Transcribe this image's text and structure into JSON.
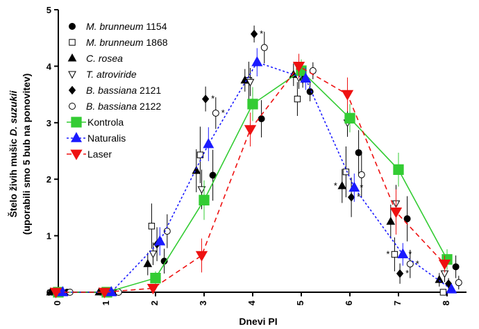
{
  "chart_data": {
    "type": "line",
    "xlabel": "Dnevi PI",
    "ylabel": "Štelo živih mušic D. suzukii",
    "ylabel_parts": {
      "line1_prefix": "Štelo živih mušic ",
      "line1_italic": "D. suzukii",
      "line2": "(uporabili smo 5 bub na ponovitev)"
    },
    "xlim": [
      0,
      8.4
    ],
    "ylim": [
      0,
      5
    ],
    "xticks": [
      "0",
      "1",
      "2",
      "3",
      "4",
      "5",
      "6",
      "7",
      "8"
    ],
    "yticks": [
      "0",
      "1",
      "2",
      "3",
      "4",
      "5"
    ],
    "legend_position": "top-left",
    "grid": false,
    "series": [
      {
        "name": "M. brunneum 1154",
        "name_italic": "M. brunneum",
        "name_plain": " 1154",
        "marker": "circle-filled",
        "color": "#000000",
        "connected": false,
        "offset": 0.18,
        "x": [
          0,
          1,
          2,
          3,
          4,
          5,
          6,
          7,
          8
        ],
        "y": [
          0,
          0,
          0.55,
          2.07,
          3.07,
          3.55,
          2.47,
          1.3,
          0.45
        ],
        "err": [
          0,
          0,
          0.22,
          0.45,
          0.33,
          0.17,
          0.4,
          0.4,
          0.2
        ]
      },
      {
        "name": "M. brunneum 1868",
        "name_italic": "M. brunneum",
        "name_plain": " 1868",
        "marker": "square-open",
        "color": "#000000",
        "connected": false,
        "offset": -0.08,
        "x": [
          0,
          1,
          2,
          3,
          4,
          5,
          6,
          7,
          8
        ],
        "y": [
          0,
          0,
          1.17,
          2.43,
          3.75,
          3.42,
          2.13,
          0.67,
          0
        ],
        "err": [
          0,
          0,
          0.4,
          0.5,
          0.33,
          0.3,
          0.45,
          0.3,
          0
        ]
      },
      {
        "name": "C. rosea",
        "name_italic": "C. rosea",
        "name_plain": "",
        "marker": "triangle-filled",
        "color": "#000000",
        "connected": false,
        "offset": -0.16,
        "x": [
          0,
          1,
          2,
          3,
          4,
          5,
          6,
          7,
          8
        ],
        "y": [
          0,
          0,
          0.5,
          2.15,
          3.75,
          3.85,
          1.88,
          1.25,
          0.22
        ],
        "err": [
          0,
          0,
          0.2,
          0.38,
          0.2,
          0.2,
          0.3,
          0.3,
          0.12
        ]
      },
      {
        "name": "T. atroviride",
        "name_italic": "T. atroviride",
        "name_plain": "",
        "marker": "triangle-down-open",
        "color": "#000000",
        "connected": false,
        "offset": -0.05,
        "x": [
          0,
          1,
          2,
          3,
          4,
          5,
          6,
          7,
          8
        ],
        "y": [
          0,
          0,
          0.68,
          1.82,
          3.72,
          3.8,
          3.0,
          1.57,
          0.33
        ],
        "err": [
          0,
          0,
          0.2,
          0.35,
          0.25,
          0.2,
          0.25,
          0.33,
          0.15
        ]
      },
      {
        "name": "B. bassiana 2121",
        "name_italic": "B. bassiana",
        "name_plain": " 2121",
        "marker": "diamond-filled",
        "color": "#000000",
        "connected": false,
        "offset": 0.03,
        "x": [
          0,
          1,
          2,
          3,
          4,
          5,
          6,
          7,
          8
        ],
        "y": [
          0,
          0,
          0.85,
          3.42,
          4.57,
          3.77,
          1.68,
          0.33,
          0.15
        ],
        "err": [
          0,
          0,
          0.3,
          0.22,
          0.15,
          0.15,
          0.35,
          0.18,
          0.1
        ]
      },
      {
        "name": "B. bassiana 2122",
        "name_italic": "B. bassiana",
        "name_plain": " 2122",
        "marker": "circle-open",
        "color": "#000000",
        "connected": false,
        "offset": 0.24,
        "x": [
          0,
          1,
          2,
          3,
          4,
          5,
          6,
          7,
          8
        ],
        "y": [
          0,
          0,
          1.08,
          3.17,
          4.33,
          3.92,
          2.08,
          0.5,
          0.17
        ],
        "err": [
          0,
          0,
          0.3,
          0.28,
          0.28,
          0.15,
          0.4,
          0.25,
          0.12
        ]
      },
      {
        "name": "Kontrola",
        "name_italic": "",
        "name_plain": "Kontrola",
        "marker": "square-filled",
        "color": "#33cc33",
        "connected": true,
        "dash": "",
        "offset": 0,
        "x": [
          0,
          1,
          2,
          3,
          4,
          5,
          6,
          7,
          8
        ],
        "y": [
          0,
          0,
          0.25,
          1.63,
          3.33,
          3.92,
          3.08,
          2.17,
          0.58
        ],
        "err": [
          0,
          0,
          0.12,
          0.35,
          0.3,
          0.2,
          0.25,
          0.3,
          0.18
        ]
      },
      {
        "name": "Naturalis",
        "name_italic": "",
        "name_plain": "Naturalis",
        "marker": "triangle-filled",
        "color": "#1a1aff",
        "connected": true,
        "dash": "3,3",
        "offset": 0.09,
        "x": [
          0,
          1,
          2,
          3,
          4,
          5,
          6,
          7,
          8
        ],
        "y": [
          0,
          0,
          0.9,
          2.62,
          4.07,
          3.78,
          1.85,
          0.67,
          0.05
        ],
        "err": [
          0,
          0,
          0.25,
          0.3,
          0.25,
          0.2,
          0.25,
          0.2,
          0.05
        ]
      },
      {
        "name": "Laser",
        "name_italic": "",
        "name_plain": "Laser",
        "marker": "triangle-down-filled",
        "color": "#ee1111",
        "connected": true,
        "dash": "7,5",
        "offset": -0.05,
        "x": [
          0,
          1,
          2,
          3,
          4,
          5,
          6,
          7,
          8
        ],
        "y": [
          0,
          0,
          0.07,
          0.65,
          2.88,
          4.0,
          3.5,
          1.42,
          0.5
        ],
        "err": [
          0,
          0,
          0.05,
          0.3,
          0.3,
          0.22,
          0.3,
          0.4,
          0.15
        ]
      }
    ],
    "annotations": [
      {
        "text": "*",
        "series": "B. bassiana 2121",
        "x": 3
      },
      {
        "text": "*",
        "series": "B. bassiana 2122",
        "x": 3
      },
      {
        "text": "*",
        "series": "B. bassiana 2121",
        "x": 4
      },
      {
        "text": "*",
        "series": "C. rosea",
        "x": 6
      },
      {
        "text": "*",
        "series": "B. bassiana 2121",
        "x": 6
      },
      {
        "text": "*",
        "series": "Naturalis",
        "x": 6
      },
      {
        "text": "*",
        "series": "M. brunneum 1868",
        "x": 7
      },
      {
        "text": "*",
        "series": "B. bassiana 2121",
        "x": 7
      },
      {
        "text": "*",
        "series": "Naturalis",
        "x": 7
      },
      {
        "text": "*",
        "series": "B. bassiana 2122",
        "x": 7
      }
    ]
  }
}
